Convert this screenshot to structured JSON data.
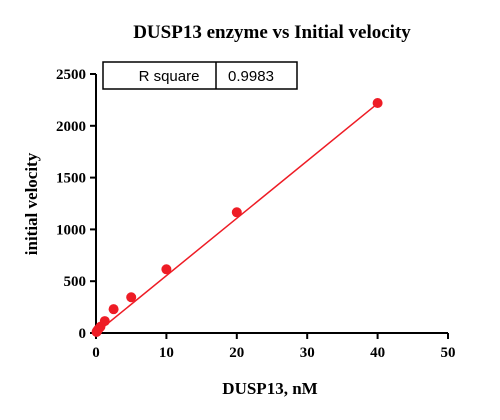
{
  "chart_data": {
    "type": "scatter",
    "title": "DUSP13 enzyme vs Initial velocity",
    "xlabel": "DUSP13, nM",
    "ylabel": "initial velocity",
    "xlim": [
      0,
      50
    ],
    "ylim": [
      0,
      2500
    ],
    "x_ticks": [
      0,
      10,
      20,
      30,
      40,
      50
    ],
    "y_ticks": [
      0,
      500,
      1000,
      1500,
      2000,
      2500
    ],
    "grid": false,
    "colors": {
      "series": "#ee1c25",
      "axis": "#000000"
    },
    "series": [
      {
        "points": [
          {
            "x": 0.08,
            "y": 10
          },
          {
            "x": 0.16,
            "y": 20
          },
          {
            "x": 0.31,
            "y": 35
          },
          {
            "x": 0.63,
            "y": 60
          },
          {
            "x": 1.25,
            "y": 115
          },
          {
            "x": 2.5,
            "y": 230
          },
          {
            "x": 5,
            "y": 345
          },
          {
            "x": 10,
            "y": 615
          },
          {
            "x": 20,
            "y": 1165
          },
          {
            "x": 40,
            "y": 2220
          }
        ],
        "fit_line": {
          "x": [
            0,
            40
          ],
          "y": [
            0,
            2215
          ]
        }
      }
    ],
    "stats_table": {
      "label": "R square",
      "value": "0.9983"
    }
  }
}
